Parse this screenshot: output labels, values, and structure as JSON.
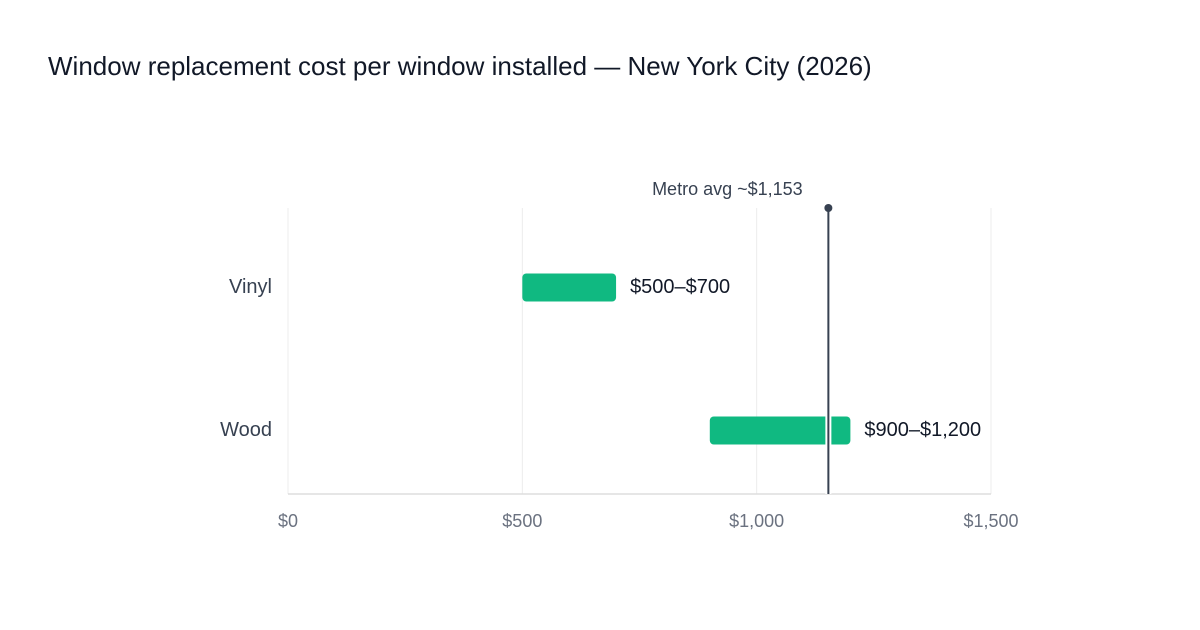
{
  "chart_data": {
    "type": "range_bar",
    "title": "Window replacement cost per window installed — New York City (2026)",
    "categories": [
      "Vinyl",
      "Wood"
    ],
    "low": [
      500,
      900
    ],
    "high": [
      700,
      1200
    ],
    "value_labels": [
      "$500–$700",
      "$900–$1,200"
    ],
    "color": "#10b981",
    "xlim": [
      0,
      1500
    ],
    "xticks": [
      {
        "value": 0,
        "label": "$0"
      },
      {
        "value": 500,
        "label": "$500"
      },
      {
        "value": 1000,
        "label": "$1,000"
      },
      {
        "value": 1500,
        "label": "$1,500"
      }
    ],
    "reference_line": {
      "value": 1153,
      "label": "Metro avg ~$1,153"
    },
    "grid": true
  }
}
